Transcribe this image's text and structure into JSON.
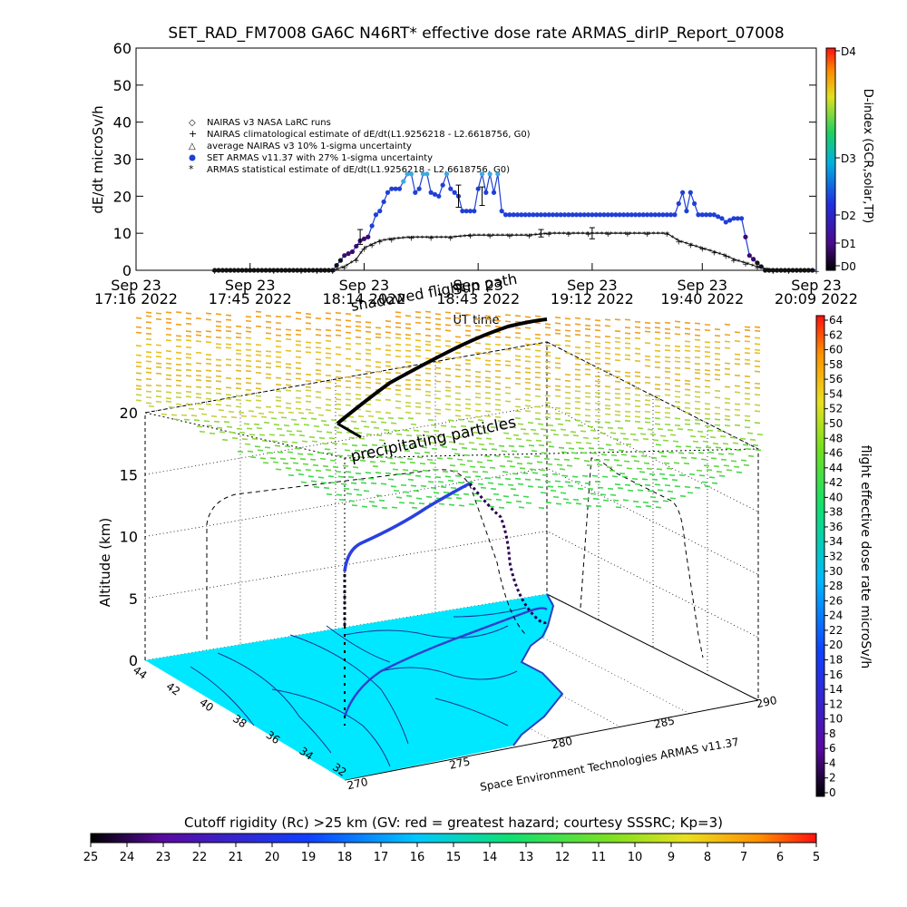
{
  "title": "SET_RAD_FM7008  GA6C N46RT* effective dose rate ARMAS_dirIP_Report_07008",
  "colors": {
    "armas_series": "#1f3fd6",
    "armas_light": "#3ea8e0",
    "nairas": "#000000",
    "map_fill": "#00e8ff"
  },
  "chart_data": [
    {
      "type": "line",
      "ylabel": "dE/dt microSv/h",
      "xlabel": "UT time",
      "ylim": [
        0,
        60
      ],
      "yticks": [
        "0",
        "10",
        "20",
        "30",
        "40",
        "50",
        "60"
      ],
      "xticks": [
        {
          "t": 0,
          "l1": "Sep 23",
          "l2": "17:16 2022"
        },
        {
          "t": 29,
          "l1": "Sep 23",
          "l2": "17:45 2022"
        },
        {
          "t": 58,
          "l1": "Sep 23",
          "l2": "18:14 2022"
        },
        {
          "t": 87,
          "l1": "Sep 23",
          "l2": "18:43 2022"
        },
        {
          "t": 116,
          "l1": "Sep 23",
          "l2": "19:12 2022"
        },
        {
          "t": 144,
          "l1": "Sep 23",
          "l2": "19:40 2022"
        },
        {
          "t": 173,
          "l1": "Sep 23",
          "l2": "20:09 2022"
        }
      ],
      "right_axis": {
        "label": "D-index (GCR,solar,TP)",
        "ticks": [
          "D0",
          "D1",
          "D2",
          "D3",
          "D4"
        ]
      },
      "legend": [
        "NAIRAS v3 NASA LaRC runs",
        "NAIRAS climatological estimate of dE/dt(L1.9256218 - L2.6618756, G0)",
        "average NAIRAS v3 10% 1-sigma uncertainty",
        "SET ARMAS v11.37 with 27% 1-sigma uncertainty",
        "ARMAS statistical estimate of dE/dt(L1.9256218 - L2.6618756, G0)"
      ],
      "series": [
        {
          "name": "SET ARMAS v11.37 with 27% 1-sigma uncertainty",
          "x": [
            20,
            27,
            34,
            42,
            50,
            53,
            55,
            57,
            59,
            61,
            62,
            64,
            65,
            67,
            69,
            70,
            71,
            72,
            73,
            74,
            75,
            77,
            79,
            80,
            82,
            83,
            85,
            86,
            87,
            88,
            89,
            90,
            91,
            92,
            93,
            94,
            95,
            96,
            97,
            98,
            99,
            100,
            101,
            103,
            105,
            107,
            109,
            111,
            113,
            115,
            117,
            119,
            121,
            123,
            125,
            127,
            129,
            131,
            133,
            135,
            137,
            139,
            140,
            141,
            143,
            145,
            147,
            149,
            150,
            152,
            154,
            156,
            160,
            166,
            173
          ],
          "y": [
            0,
            0,
            0,
            0,
            0,
            4,
            5,
            8,
            9,
            15,
            16,
            21,
            22,
            22,
            26,
            26,
            21,
            22,
            26,
            26,
            21,
            20,
            26,
            22,
            20,
            16,
            16,
            16,
            22,
            26,
            21,
            26,
            21,
            26,
            16,
            15,
            15,
            15,
            15,
            15,
            15,
            15,
            15,
            15,
            15,
            15,
            15,
            15,
            15,
            15,
            15,
            15,
            15,
            15,
            15,
            15,
            15,
            15,
            15,
            15,
            15,
            21,
            16,
            21,
            15,
            15,
            15,
            14,
            13,
            14,
            14,
            4,
            0,
            0,
            0
          ]
        },
        {
          "name": "ARMAS statistical estimate of dE/dt(L1.9256218 - L2.6618756, G0)",
          "x": [
            20,
            35,
            42,
            46,
            50,
            53,
            56,
            58,
            60,
            62,
            65,
            70,
            75,
            80,
            85,
            90,
            95,
            100,
            105,
            110,
            115,
            120,
            125,
            130,
            135,
            138,
            141,
            144,
            147,
            150,
            152,
            155,
            158,
            162,
            166,
            173
          ],
          "y": [
            0,
            0,
            0,
            0,
            0,
            1,
            3,
            6,
            7,
            8,
            8.5,
            9,
            9,
            9,
            9.5,
            9.5,
            9.5,
            9.5,
            10,
            10,
            10,
            10,
            10,
            10,
            10,
            8,
            7,
            6,
            5,
            4,
            3,
            2,
            1,
            0,
            0,
            0
          ]
        },
        {
          "name": "NAIRAS climatological estimate of dE/dt(L1.9256218 - L2.6618756, G0)",
          "x": [
            20,
            35,
            42,
            46,
            50,
            53,
            56,
            58,
            60,
            62,
            65,
            70,
            75,
            80,
            85,
            90,
            95,
            100,
            105,
            110,
            115,
            120,
            125,
            130,
            135,
            138,
            141,
            144,
            147,
            150,
            152,
            155,
            158,
            162,
            166,
            173
          ],
          "y": [
            0,
            0,
            0,
            0,
            0,
            1,
            3,
            6,
            7,
            8,
            8.5,
            9,
            9,
            9,
            9.5,
            9.5,
            9.5,
            9.5,
            10,
            10,
            10,
            10,
            10,
            10,
            10,
            8,
            7,
            6,
            5,
            4,
            3,
            2,
            1,
            0,
            0,
            0
          ]
        }
      ]
    },
    {
      "type": "scatter",
      "ylabel": "Altitude (km)",
      "ylim": [
        0,
        20
      ],
      "yticks": [
        "0",
        "5",
        "10",
        "15",
        "20"
      ],
      "lat_ticks": [
        "44",
        "42",
        "40",
        "38",
        "36",
        "34",
        "32"
      ],
      "lon_ticks": [
        "270",
        "275",
        "280",
        "285",
        "290"
      ],
      "right_axis": {
        "label": "flight effective dose rate microSv/h",
        "range": [
          0,
          64
        ],
        "ticks": [
          "0",
          "2",
          "4",
          "6",
          "8",
          "10",
          "12",
          "14",
          "16",
          "18",
          "20",
          "22",
          "24",
          "26",
          "28",
          "30",
          "32",
          "34",
          "36",
          "38",
          "40",
          "42",
          "44",
          "46",
          "48",
          "50",
          "52",
          "54",
          "56",
          "58",
          "60",
          "62",
          "64"
        ]
      },
      "bottom_bar": {
        "label": "Cutoff rigidity (Rc) >25 km (GV: red = greatest hazard; courtesy SSSRC; Kp=3)",
        "ticks": [
          "25",
          "24",
          "23",
          "22",
          "21",
          "20",
          "19",
          "18",
          "17",
          "16",
          "15",
          "14",
          "13",
          "12",
          "11",
          "10",
          "9",
          "8",
          "7",
          "6",
          "5"
        ]
      }
    }
  ],
  "annotations": {
    "precipitating": "precipitating particles",
    "overlap1": "shadowed flight",
    "overlap2": "Sun path",
    "credit": "Space Environment Technologies ARMAS v11.37"
  }
}
